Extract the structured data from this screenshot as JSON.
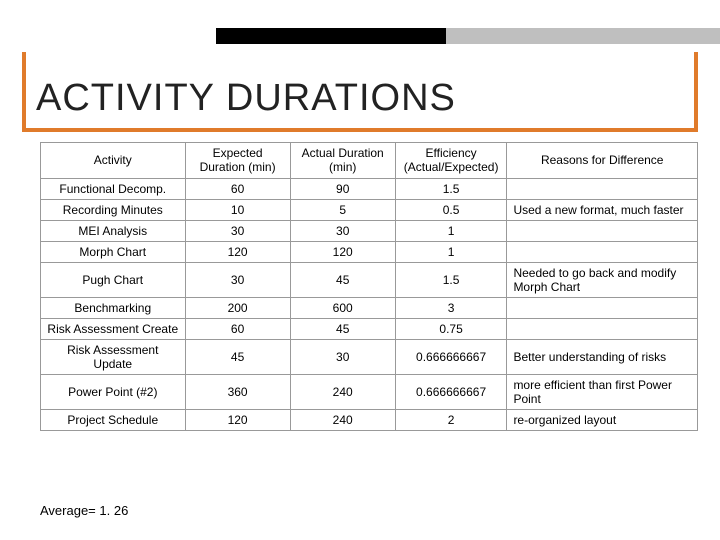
{
  "title": "ACTIVITY DURATIONS",
  "colors": {
    "accent": "#e07b2b",
    "black": "#000000",
    "gray": "#bfbfbf",
    "border": "#999999",
    "text": "#000000",
    "background": "#ffffff"
  },
  "table": {
    "columns": [
      "Activity",
      "Expected Duration (min)",
      "Actual Duration (min)",
      "Efficiency (Actual/Expected)",
      "Reasons for Difference"
    ],
    "col_widths_pct": [
      22,
      16,
      16,
      17,
      29
    ],
    "rows": [
      {
        "activity": "Functional Decomp.",
        "expected": "60",
        "actual": "90",
        "efficiency": "1.5",
        "reason": ""
      },
      {
        "activity": "Recording Minutes",
        "expected": "10",
        "actual": "5",
        "efficiency": "0.5",
        "reason": "Used a new format, much faster"
      },
      {
        "activity": "MEI Analysis",
        "expected": "30",
        "actual": "30",
        "efficiency": "1",
        "reason": ""
      },
      {
        "activity": "Morph Chart",
        "expected": "120",
        "actual": "120",
        "efficiency": "1",
        "reason": ""
      },
      {
        "activity": "Pugh Chart",
        "expected": "30",
        "actual": "45",
        "efficiency": "1.5",
        "reason": "Needed to go back and modify Morph Chart"
      },
      {
        "activity": "Benchmarking",
        "expected": "200",
        "actual": "600",
        "efficiency": "3",
        "reason": ""
      },
      {
        "activity": "Risk Assessment Create",
        "expected": "60",
        "actual": "45",
        "efficiency": "0.75",
        "reason": ""
      },
      {
        "activity": "Risk Assessment Update",
        "expected": "45",
        "actual": "30",
        "efficiency": "0.666666667",
        "reason": "Better understanding of risks"
      },
      {
        "activity": "Power Point (#2)",
        "expected": "360",
        "actual": "240",
        "efficiency": "0.666666667",
        "reason": "more efficient than first Power Point"
      },
      {
        "activity": "Project Schedule",
        "expected": "120",
        "actual": "240",
        "efficiency": "2",
        "reason": "re-organized layout"
      }
    ]
  },
  "average_label": "Average= 1. 26"
}
